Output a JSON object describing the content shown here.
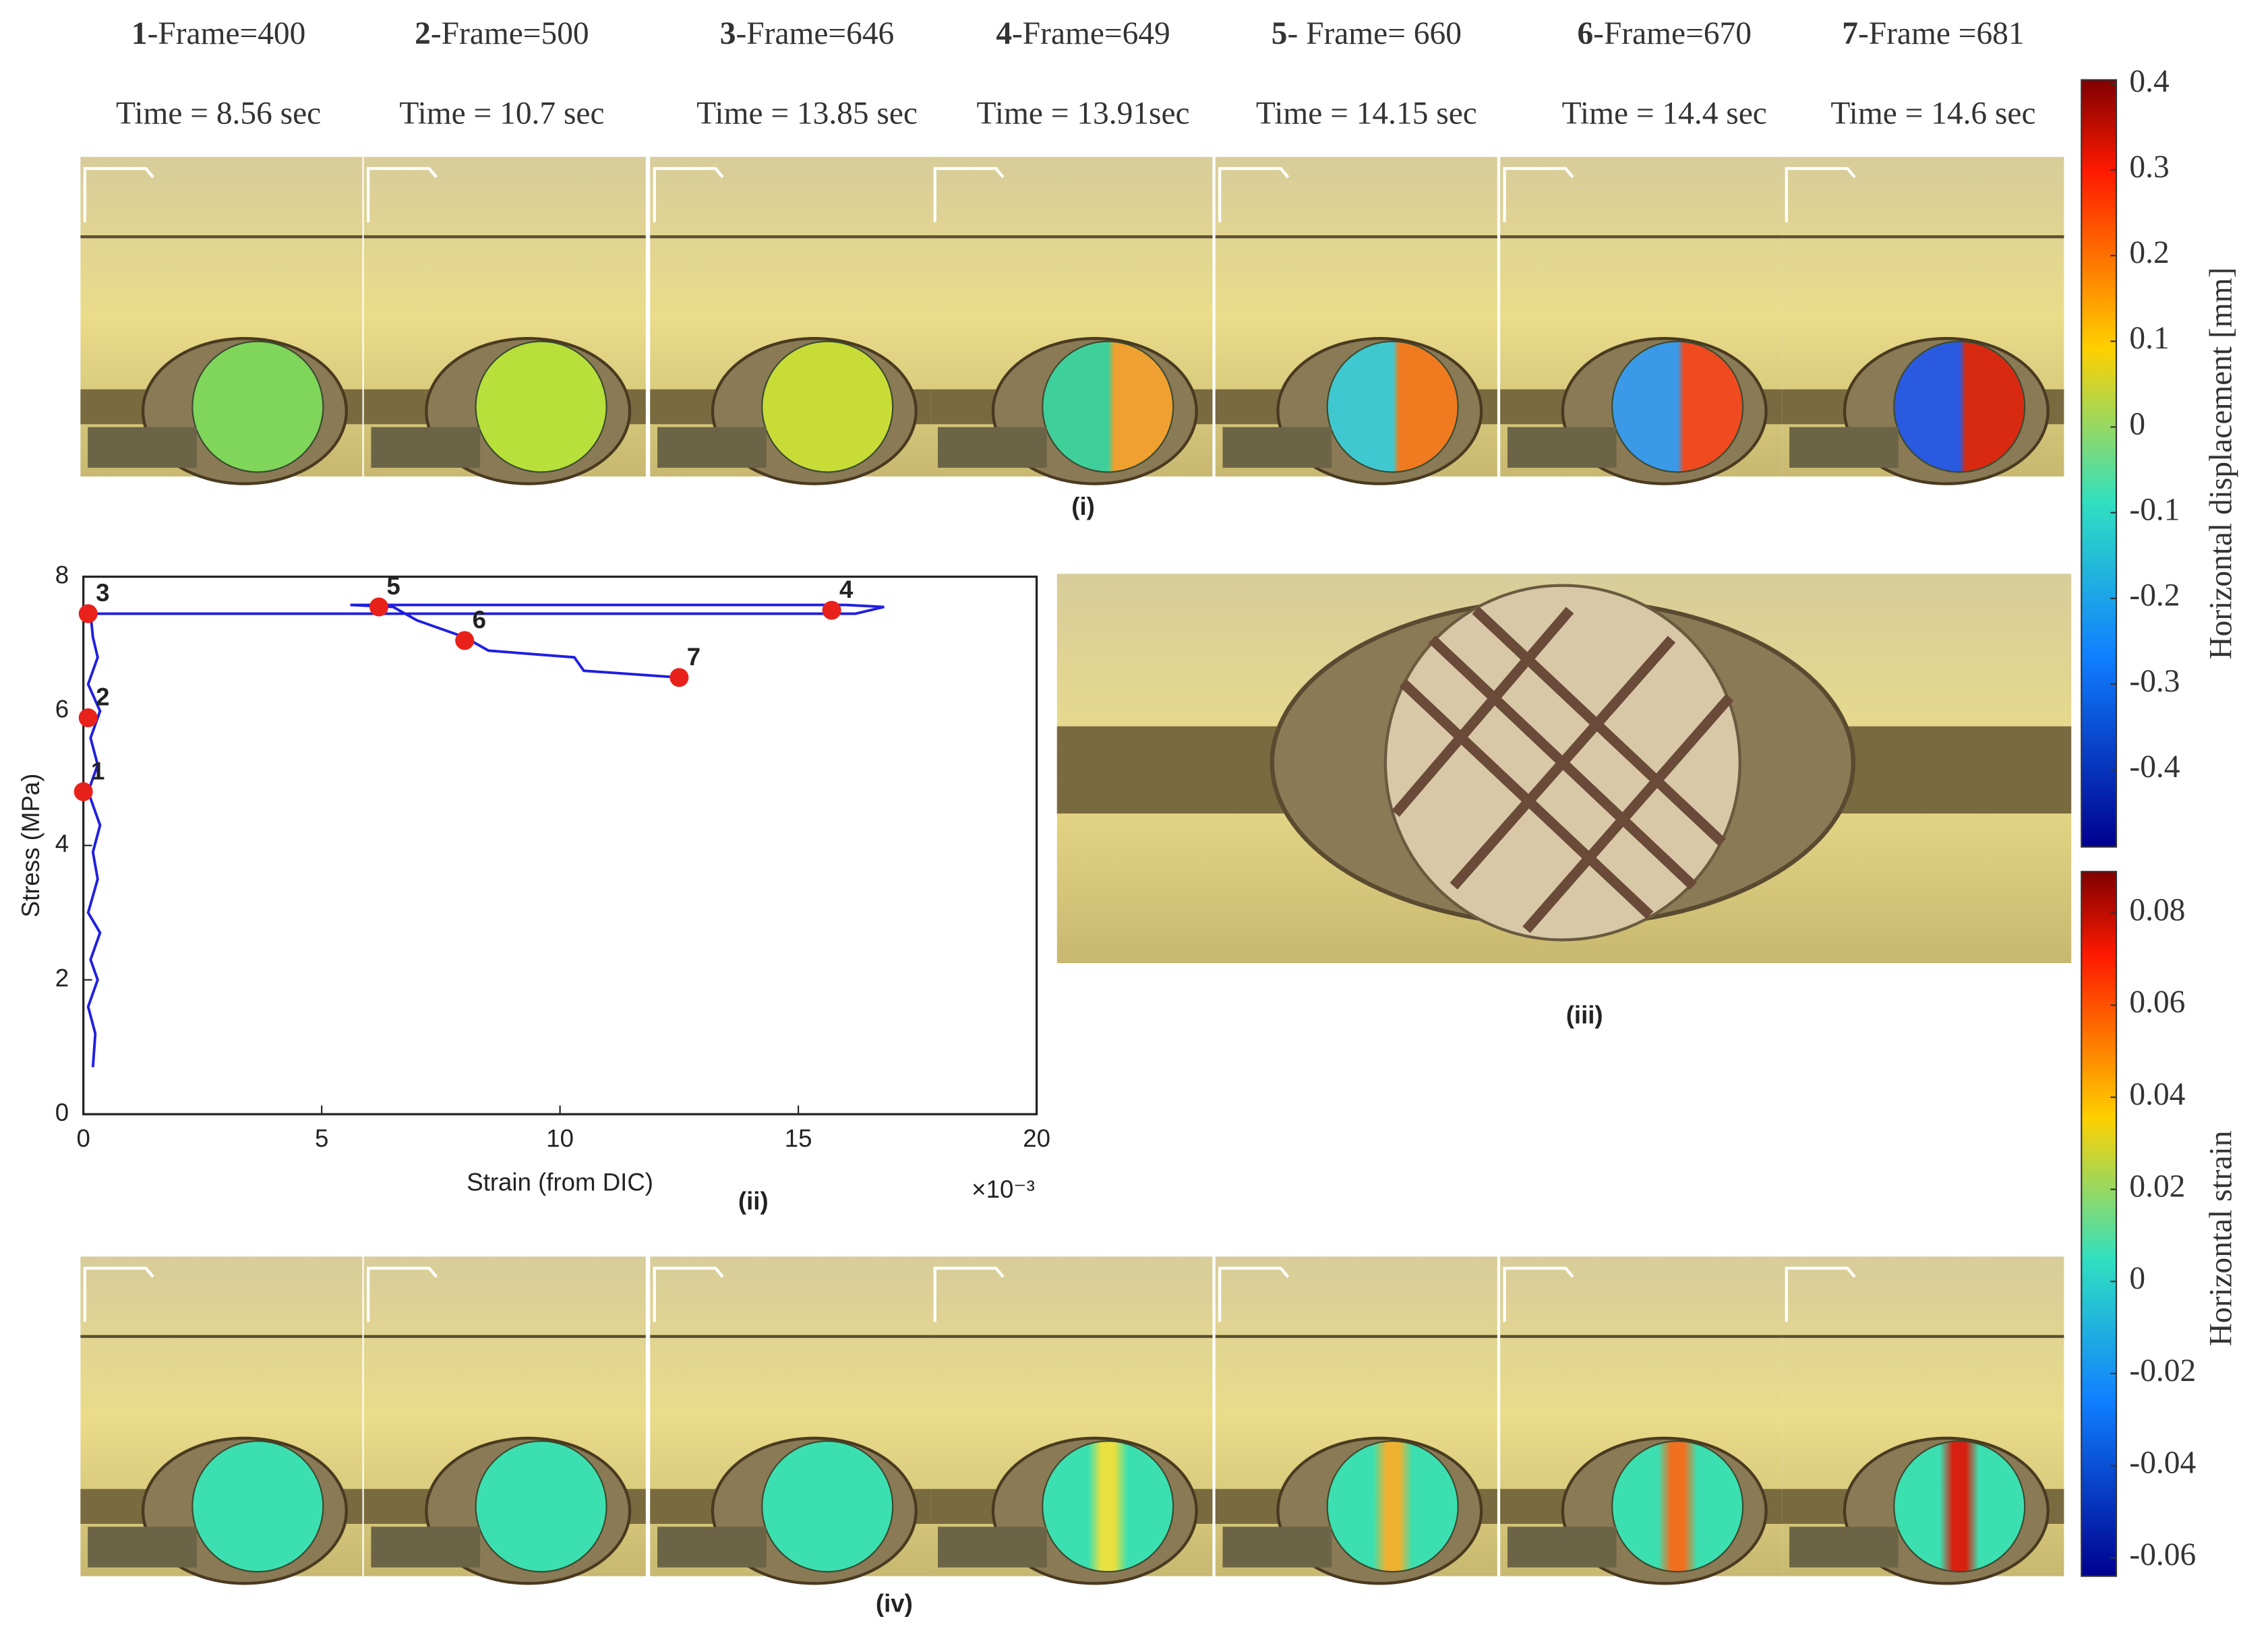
{
  "frames": [
    {
      "number": "1",
      "label": "-Frame=400",
      "time": "Time = 8.56 sec"
    },
    {
      "number": "2",
      "label": "-Frame=500",
      "time": "Time = 10.7 sec"
    },
    {
      "number": "3",
      "label": "-Frame=646",
      "time": "Time = 13.85 sec"
    },
    {
      "number": "4",
      "label": "-Frame=649",
      "time": "Time = 13.91sec"
    },
    {
      "number": "5",
      "label": "- Frame= 660",
      "time": "Time = 14.15 sec"
    },
    {
      "number": "6",
      "label": "-Frame=670",
      "time": "Time = 14.4 sec"
    },
    {
      "number": "7",
      "label": "-Frame =681",
      "time": "Time = 14.6 sec"
    }
  ],
  "panels": {
    "i": "(i)",
    "ii": "(ii)",
    "iii": "(iii)",
    "iv": "(iv)"
  },
  "colorbars": [
    {
      "label": "Horizontal displacement [mm]",
      "lim": [
        -0.49,
        0.405
      ],
      "ticks": [
        0.4,
        0.3,
        0.2,
        0.1,
        0,
        -0.1,
        -0.2,
        -0.3,
        -0.4
      ]
    },
    {
      "label": "Horizontal strain",
      "lim": [
        -0.064,
        0.089
      ],
      "ticks": [
        0.08,
        0.06,
        0.04,
        0.02,
        0,
        -0.02,
        -0.04,
        -0.06
      ]
    }
  ],
  "chart_data": {
    "type": "line",
    "x_label": "Strain (from DIC)",
    "y_label": "Stress (MPa)",
    "x_multiplier": "×10⁻³",
    "xlim": [
      0,
      20
    ],
    "ylim": [
      0,
      8
    ],
    "xticks": [
      0,
      5,
      10,
      15,
      20
    ],
    "yticks": [
      0,
      2,
      4,
      6,
      8
    ],
    "color": "#1f1fe0",
    "x": [
      0.2,
      0.25,
      0.1,
      0.3,
      0.15,
      0.35,
      0.1,
      0.3,
      0.2,
      0.35,
      0.1,
      0.3,
      0.15,
      0.35,
      0.1,
      0.3,
      0.2,
      0.15,
      5,
      10,
      15,
      16.2,
      16.8,
      16,
      10,
      5.6,
      6.5,
      7.0,
      8.0,
      8.5,
      10.3,
      10.5,
      12.5
    ],
    "y": [
      0.7,
      1.2,
      1.6,
      2.0,
      2.3,
      2.7,
      3.0,
      3.5,
      3.9,
      4.3,
      4.8,
      5.2,
      5.6,
      6.0,
      6.4,
      6.8,
      7.1,
      7.45,
      7.45,
      7.45,
      7.45,
      7.45,
      7.55,
      7.58,
      7.58,
      7.58,
      7.55,
      7.35,
      7.1,
      6.9,
      6.8,
      6.6,
      6.5
    ],
    "markers": {
      "color": "#e8221b",
      "labels": [
        "1",
        "2",
        "3",
        "4",
        "5",
        "6",
        "7"
      ],
      "x": [
        0,
        0.1,
        0.1,
        15.7,
        6.2,
        8,
        12.5
      ],
      "y": [
        4.8,
        5.9,
        7.45,
        7.5,
        7.55,
        7.05,
        6.5
      ]
    }
  }
}
